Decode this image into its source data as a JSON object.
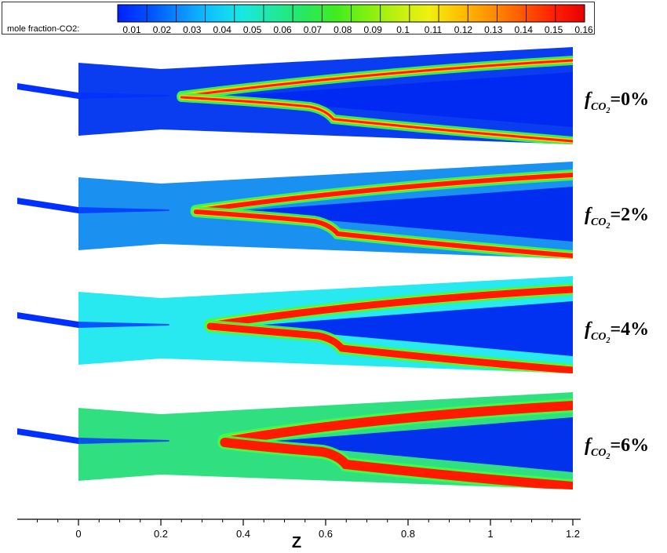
{
  "legend": {
    "label": "mole fraction-CO2:",
    "ticks": [
      "0.01",
      "0.02",
      "0.03",
      "0.04",
      "0.05",
      "0.06",
      "0.07",
      "0.08",
      "0.09",
      "0.1",
      "0.11",
      "0.12",
      "0.13",
      "0.14",
      "0.15",
      "0.16"
    ],
    "colors": [
      "#0020ff",
      "#0050ff",
      "#0a8cff",
      "#10c4ff",
      "#18e8e0",
      "#20e8a0",
      "#28e860",
      "#40ec20",
      "#80f010",
      "#c0f010",
      "#f0f010",
      "#ffc000",
      "#ff9000",
      "#ff5800",
      "#ff2000",
      "#e80000"
    ]
  },
  "axis": {
    "label": "Z",
    "ticks": [
      "0",
      "0.2",
      "0.4",
      "0.6",
      "0.8",
      "1",
      "1.2"
    ],
    "tick_values": [
      0,
      0.2,
      0.4,
      0.6,
      0.8,
      1.0,
      1.2
    ],
    "range": [
      -0.15,
      1.2
    ]
  },
  "cases": [
    {
      "symbol": "f",
      "subscript": "CO",
      "subsub": "2",
      "value_text": "=0%",
      "background": "#0a3cf0"
    },
    {
      "symbol": "f",
      "subscript": "CO",
      "subsub": "2",
      "value_text": "=2%",
      "background": "#1a90f0"
    },
    {
      "symbol": "f",
      "subscript": "CO",
      "subsub": "2",
      "value_text": "=4%",
      "background": "#28e8f0"
    },
    {
      "symbol": "f",
      "subscript": "CO",
      "subsub": "2",
      "value_text": "=6%",
      "background": "#30e080"
    }
  ],
  "colors": {
    "jet_core": "#0030ff",
    "flame": "#ff1a00",
    "flame_edge": "#ffd000",
    "flame_mid": "#40ff40",
    "inner_dark": "#0028f0"
  }
}
